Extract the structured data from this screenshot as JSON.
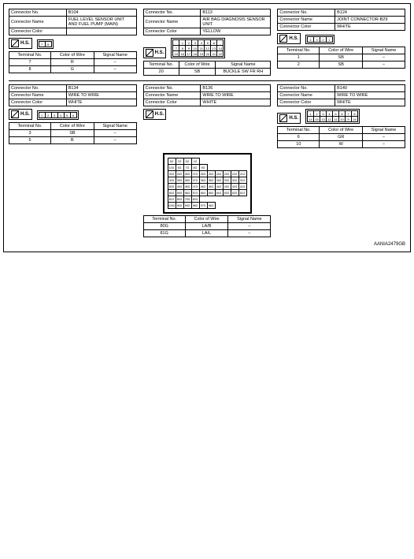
{
  "footer_code": "AANIA2479GB",
  "hs_label": "H.S.",
  "blocks": {
    "B104": {
      "conn_no": "B104",
      "conn_name": "FUEL LEVEL SENSOR UNIT AND FUEL PUMP (MAIN)",
      "conn_color": "",
      "pin_draw": [
        [
          "7",
          "8"
        ]
      ],
      "pins": [
        {
          "t": "7",
          "c": "R",
          "s": "–"
        },
        {
          "t": "8",
          "c": "G",
          "s": "–"
        }
      ]
    },
    "B113": {
      "conn_no": "B113",
      "conn_name": "AIR BAG DIAGNOSIS SENSOR UNIT",
      "conn_color": "YELLOW",
      "pin_draw": [
        [
          "",
          "1",
          "2",
          "3",
          "4",
          "5",
          "6",
          ""
        ],
        [
          "7",
          "8",
          "9",
          "10",
          "11",
          "12",
          "13",
          "14"
        ],
        [
          "15",
          "16",
          "17",
          "18",
          "19",
          "20",
          "21",
          "22"
        ]
      ],
      "pins": [
        {
          "t": "20",
          "c": "SB",
          "s": "BUCKLE SW FR RH"
        }
      ]
    },
    "B124": {
      "conn_no": "B124",
      "conn_name": "JOINT CONNECTOR-B29",
      "conn_color": "WHITE",
      "pin_draw": [
        [
          "4",
          "3",
          "2",
          "1"
        ]
      ],
      "pins": [
        {
          "t": "1",
          "c": "SB",
          "s": "–"
        },
        {
          "t": "2",
          "c": "SB",
          "s": "–"
        }
      ]
    },
    "B134": {
      "conn_no": "B134",
      "conn_name": "WIRE TO WIRE",
      "conn_color": "WHITE",
      "pin_draw": [
        [
          "1",
          "2",
          "3",
          "4",
          "5",
          "6"
        ]
      ],
      "pins": [
        {
          "t": "3",
          "c": "SB",
          "s": "–"
        },
        {
          "t": "5",
          "c": "B",
          "s": "–"
        }
      ]
    },
    "B136": {
      "conn_no": "B136",
      "conn_name": "WIRE TO WIRE",
      "conn_color": "WHITE",
      "big_rows": [
        [
          "5G",
          "2G",
          "6G",
          "1G"
        ],
        [
          "10G",
          "6G",
          "7G",
          "8G",
          "9G"
        ],
        [
          "30G",
          "29G",
          "28G",
          "27G",
          "26G",
          "25G",
          "24G",
          "23G",
          "22G",
          "21G"
        ],
        [
          "40G",
          "39G",
          "38G",
          "37G",
          "36G",
          "35G",
          "34G",
          "33G",
          "32G",
          "31G"
        ],
        [
          "50G",
          "49G",
          "48G",
          "47G",
          "46G",
          "45G",
          "44G",
          "43G",
          "42G",
          "41G"
        ],
        [
          "60G",
          "59G",
          "58G",
          "57G",
          "56G",
          "55G",
          "54G",
          "53G",
          "52G",
          "51G"
        ],
        [
          "81G",
          "80G",
          "79G",
          "82G"
        ],
        [
          "100G",
          "90G",
          "99G",
          "98G",
          "97G",
          "96G"
        ]
      ],
      "pins": [
        {
          "t": "80G",
          "c": "LA/B",
          "s": "–"
        },
        {
          "t": "81G",
          "c": "LA/L",
          "s": "–"
        }
      ]
    },
    "B140": {
      "conn_no": "B140",
      "conn_name": "WIRE TO WIRE",
      "conn_color": "WHITE",
      "pin_draw": [
        [
          "1",
          "2",
          "3",
          "4",
          "5",
          "6",
          "7",
          "8"
        ],
        [
          "14",
          "15",
          "13",
          "12",
          "11",
          "10",
          "9",
          "16"
        ]
      ],
      "pins": [
        {
          "t": "6",
          "c": "GR",
          "s": "–"
        },
        {
          "t": "10",
          "c": "W",
          "s": "–"
        }
      ]
    }
  },
  "col_headers": {
    "t": "Terminal No.",
    "c": "Color of Wire",
    "s": "Signal Name"
  },
  "row_labels": {
    "no": "Connector No.",
    "name": "Connector Name",
    "color": "Connector Color"
  }
}
